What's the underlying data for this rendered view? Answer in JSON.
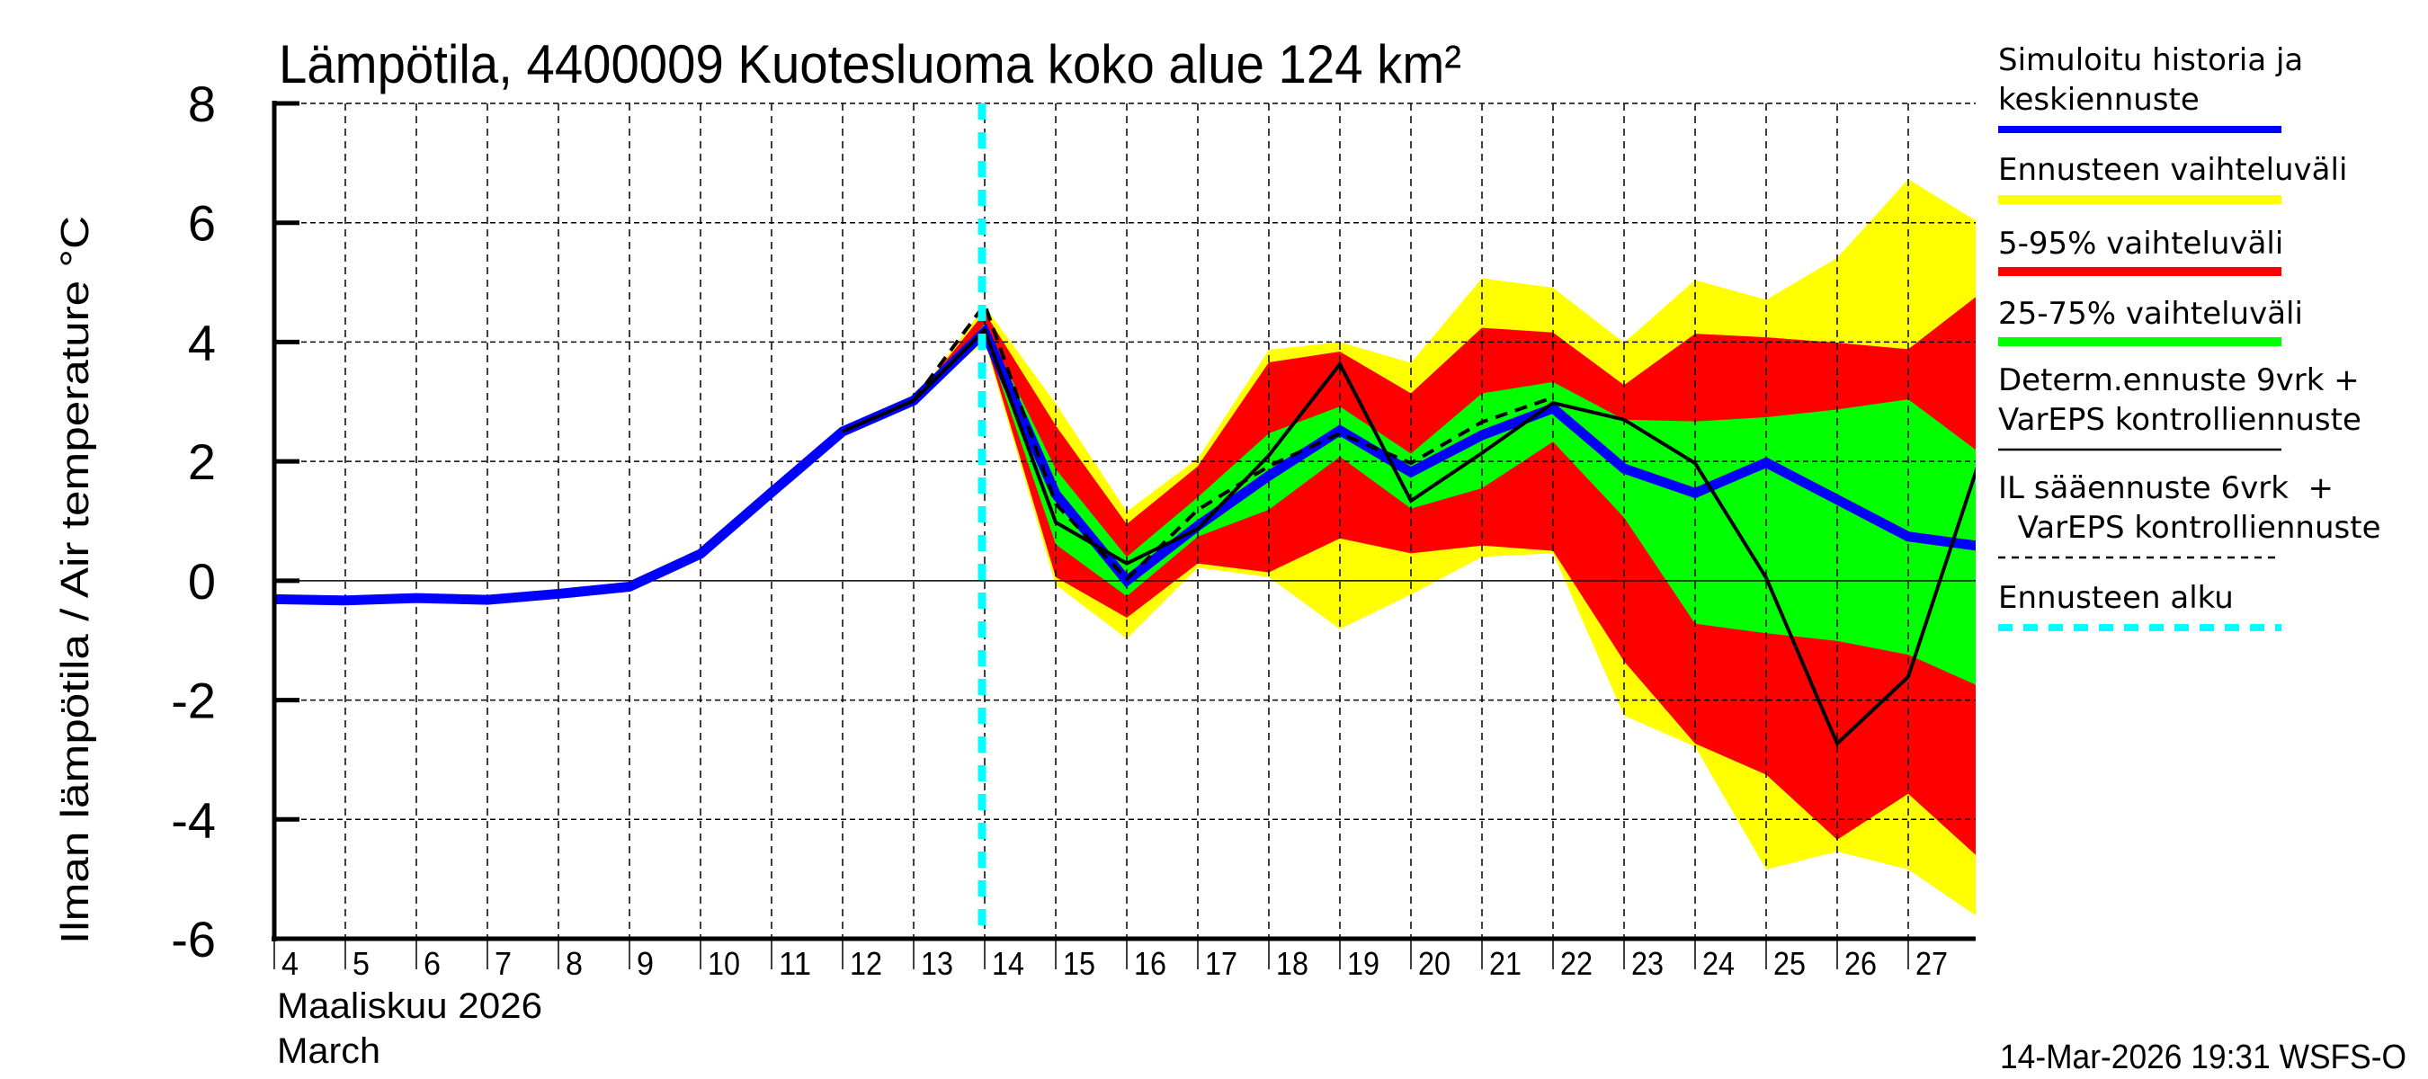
{
  "chart_data": {
    "type": "area",
    "title": "Lämpötila, 4400009 Kuotesluoma koko alue 124 km²",
    "ylabel": "Ilman lämpötila / Air temperature   °C",
    "xlabel_fi": "Maaliskuu 2026",
    "xlabel_en": "March",
    "ylim": [
      -6,
      8
    ],
    "yticks": [
      "8",
      "6",
      "4",
      "2",
      "0",
      "-2",
      "-4",
      "-6"
    ],
    "xlim_days": [
      4,
      27.95
    ],
    "xticks": [
      "4",
      "5",
      "6",
      "7",
      "8",
      "9",
      "10",
      "11",
      "12",
      "13",
      "14",
      "15",
      "16",
      "17",
      "18",
      "19",
      "20",
      "21",
      "22",
      "23",
      "24",
      "25",
      "26",
      "27"
    ],
    "grid": true,
    "legend_position": "right",
    "forecast_start_day": 14,
    "colors": {
      "mean": "#0000ff",
      "range": "#ffff00",
      "p5_95": "#ff0000",
      "p25_75": "#00ff00",
      "determ": "#000000",
      "il": "#000000",
      "forecast_start": "#00ffff"
    },
    "legend": [
      {
        "key": "mean",
        "label1": "Simuloitu historia ja",
        "label2": "keskiennuste"
      },
      {
        "key": "range",
        "label1": "Ennusteen vaihteluväli",
        "label2": ""
      },
      {
        "key": "p5_95",
        "label1": "5-95% vaihteluväli",
        "label2": ""
      },
      {
        "key": "p25_75",
        "label1": "25-75% vaihteluväli",
        "label2": ""
      },
      {
        "key": "determ",
        "label1": "Determ.ennuste 9vrk +",
        "label2": "VarEPS kontrolliennuste"
      },
      {
        "key": "il",
        "label1": "IL sääennuste 6vrk  +",
        "label2": "  VarEPS kontrolliennuste"
      },
      {
        "key": "forecast_start",
        "label1": "Ennusteen alku",
        "label2": ""
      }
    ],
    "bands_x": [
      13,
      14,
      15,
      16,
      17,
      18,
      19,
      20,
      21,
      22,
      23,
      24,
      25,
      26,
      27,
      28
    ],
    "range_upper": [
      3.02,
      4.6,
      2.97,
      1.16,
      2.05,
      3.87,
      4.0,
      3.65,
      5.07,
      4.91,
      3.99,
      5.04,
      4.71,
      5.41,
      6.73,
      6.0
    ],
    "range_lower": [
      3.02,
      4.0,
      -0.07,
      -0.97,
      0.22,
      0.06,
      -0.81,
      -0.23,
      0.4,
      0.46,
      -2.26,
      -2.78,
      -4.84,
      -4.54,
      -4.84,
      -5.65
    ],
    "p5_95_upper": [
      3.02,
      4.5,
      2.6,
      0.95,
      1.92,
      3.66,
      3.84,
      3.14,
      4.24,
      4.16,
      3.28,
      4.14,
      4.08,
      3.99,
      3.88,
      4.8
    ],
    "p5_95_lower": [
      3.02,
      4.05,
      0.06,
      -0.62,
      0.29,
      0.14,
      0.71,
      0.46,
      0.59,
      0.5,
      -1.35,
      -2.73,
      -3.25,
      -4.34,
      -3.57,
      -4.65
    ],
    "p25_75_upper": [
      3.02,
      4.3,
      1.87,
      0.4,
      1.4,
      2.47,
      2.92,
      2.13,
      3.14,
      3.33,
      2.7,
      2.67,
      2.74,
      2.87,
      3.04,
      2.15
    ],
    "p25_75_lower": [
      3.02,
      4.1,
      0.61,
      -0.26,
      0.74,
      1.19,
      2.08,
      1.21,
      1.55,
      2.33,
      1.06,
      -0.72,
      -0.88,
      -1.01,
      -1.24,
      -1.77
    ],
    "mean": {
      "x": [
        4,
        5,
        6,
        7,
        8,
        9,
        10,
        11,
        12,
        13,
        14,
        15,
        16,
        17,
        18,
        19,
        20,
        21,
        22,
        23,
        24,
        25,
        26,
        27,
        28
      ],
      "y": [
        -0.31,
        -0.33,
        -0.29,
        -0.32,
        -0.22,
        -0.1,
        0.45,
        1.48,
        2.5,
        3.02,
        4.17,
        1.45,
        0.0,
        0.92,
        1.76,
        2.52,
        1.82,
        2.44,
        2.89,
        1.88,
        1.47,
        1.98,
        1.36,
        0.74,
        0.58
      ]
    },
    "determ": {
      "x": [
        12,
        13,
        14,
        15,
        16,
        17,
        18,
        19,
        20,
        21,
        22,
        23,
        24,
        25,
        26,
        27,
        28
      ],
      "y": [
        2.5,
        3.02,
        4.2,
        0.98,
        0.29,
        0.87,
        2.1,
        3.63,
        1.34,
        2.14,
        2.98,
        2.7,
        1.97,
        0.05,
        -2.73,
        -1.61,
        2.0
      ]
    },
    "il": {
      "x": [
        13,
        14,
        15,
        16,
        17,
        18,
        19,
        20,
        21,
        22
      ],
      "y": [
        3.02,
        4.63,
        1.29,
        0.03,
        1.19,
        1.92,
        2.47,
        1.97,
        2.66,
        3.07
      ]
    }
  },
  "footer": "14-Mar-2026 19:31 WSFS-O"
}
